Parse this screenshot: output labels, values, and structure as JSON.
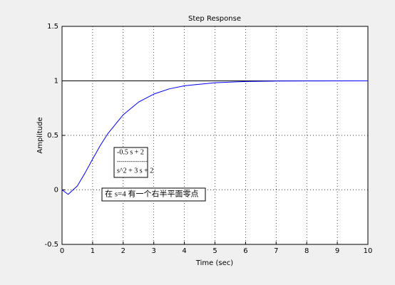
{
  "chart_data": {
    "type": "line",
    "title": "Step Response",
    "xlabel": "Time (sec)",
    "ylabel": "Amplitude",
    "x": [
      0,
      0.2,
      0.5,
      0.75,
      1,
      1.25,
      1.5,
      2,
      2.5,
      3,
      3.5,
      4,
      5,
      6,
      7,
      8,
      10
    ],
    "values": [
      0,
      -0.041,
      0.036,
      0.154,
      0.283,
      0.407,
      0.517,
      0.689,
      0.805,
      0.879,
      0.926,
      0.955,
      0.983,
      0.994,
      0.998,
      0.999,
      1.0
    ],
    "color": "#0000ff",
    "hlines": [
      1
    ],
    "hline_color": "#000000",
    "xlim": [
      0,
      10
    ],
    "xticks": [
      0,
      1,
      2,
      3,
      4,
      5,
      6,
      7,
      8,
      9,
      10
    ],
    "ylim": [
      -0.5,
      1.5
    ],
    "yticks": [
      -0.5,
      0,
      0.5,
      1,
      1.5
    ],
    "grid": true,
    "annotations": {
      "numerator": "-0.5 s + 2",
      "separator": "----------------",
      "denominator": "s^2 + 3 s + 2",
      "note": "在 s=4 有一个右半平面零点"
    }
  }
}
